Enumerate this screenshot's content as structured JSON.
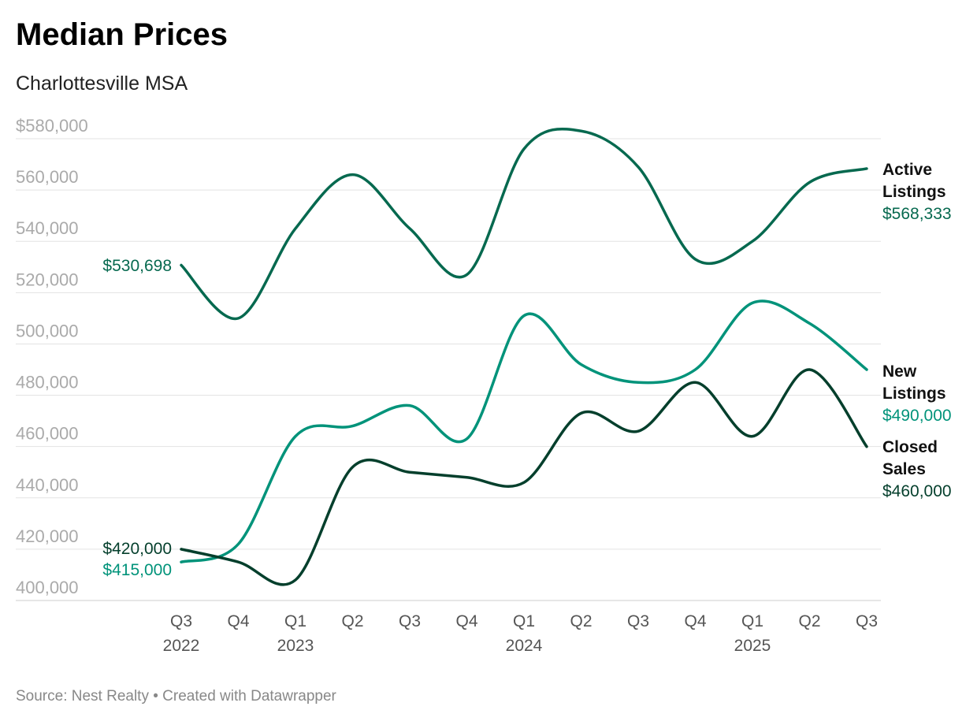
{
  "chart_data": {
    "type": "line",
    "title": "Median Prices",
    "subtitle": "Charlottesville MSA",
    "footer": "Source: Nest Realty • Created with Datawrapper",
    "categories": [
      "Q3",
      "Q4",
      "Q1",
      "Q2",
      "Q3",
      "Q4",
      "Q1",
      "Q2",
      "Q3",
      "Q4",
      "Q1",
      "Q2",
      "Q3"
    ],
    "year_labels": [
      "2022",
      "",
      "2023",
      "",
      "",
      "",
      "2024",
      "",
      "",
      "",
      "2025",
      "",
      ""
    ],
    "ylim": [
      400000,
      580000
    ],
    "yticks": [
      400000,
      420000,
      440000,
      460000,
      480000,
      500000,
      520000,
      540000,
      560000,
      580000
    ],
    "ytick_labels": [
      "400,000",
      "420,000",
      "440,000",
      "460,000",
      "480,000",
      "500,000",
      "520,000",
      "540,000",
      "560,000",
      "$580,000"
    ],
    "grid": true,
    "series": [
      {
        "name": "Active Listings",
        "name_lines": [
          "Active",
          "Listings"
        ],
        "color": "#06694f",
        "start_label": "$530,698",
        "end_label": "$568,333",
        "values": [
          530698,
          510000,
          545000,
          566000,
          545000,
          527000,
          576000,
          583000,
          569000,
          533000,
          540000,
          563000,
          568333
        ]
      },
      {
        "name": "New Listings",
        "name_lines": [
          "New",
          "Listings"
        ],
        "color": "#00937a",
        "start_label": "$415,000",
        "end_label": "$490,000",
        "values": [
          415000,
          422000,
          464000,
          468000,
          476000,
          463000,
          511000,
          492000,
          485000,
          490000,
          516000,
          508000,
          490000
        ]
      },
      {
        "name": "Closed Sales",
        "name_lines": [
          "Closed",
          "Sales"
        ],
        "color": "#043f2c",
        "start_label": "$420,000",
        "end_label": "$460,000",
        "values": [
          420000,
          415000,
          408000,
          452000,
          450000,
          448000,
          446000,
          473000,
          466000,
          485000,
          464000,
          490000,
          460000
        ]
      }
    ]
  }
}
